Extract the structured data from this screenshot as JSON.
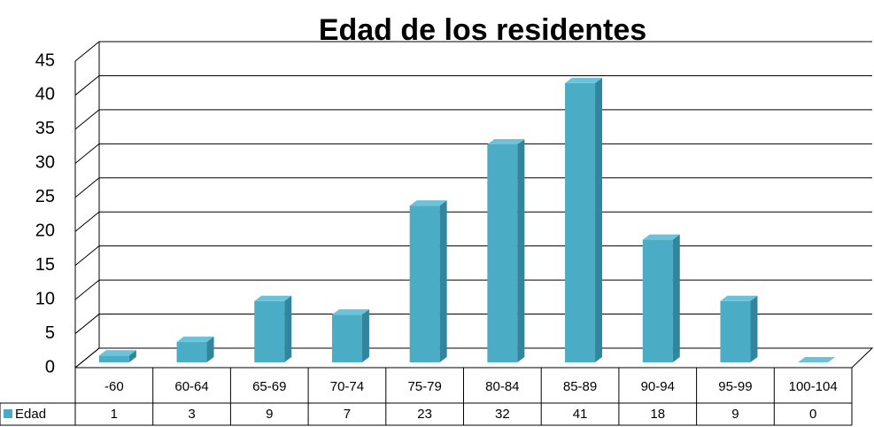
{
  "chart_data": {
    "type": "bar3d",
    "title": "Edad de los residentes",
    "categories": [
      "-60",
      "60-64",
      "65-69",
      "70-74",
      "75-79",
      "80-84",
      "85-89",
      "90-94",
      "95-99",
      "100-104"
    ],
    "series": [
      {
        "name": "Edad",
        "color": "#4bacc6",
        "values": [
          1,
          3,
          9,
          7,
          23,
          32,
          41,
          18,
          9,
          0
        ]
      }
    ],
    "ylim": [
      0,
      45
    ],
    "yticks": [
      0,
      5,
      10,
      15,
      20,
      25,
      30,
      35,
      40,
      45
    ],
    "grid": true,
    "data_table": true
  }
}
